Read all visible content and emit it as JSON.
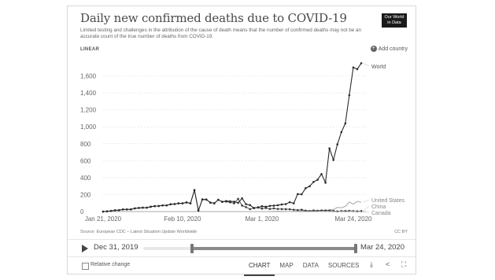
{
  "header": {
    "title": "Daily new confirmed deaths due to COVID-19",
    "subtitle": "Limited testing and challenges in the attribution of the cause of death means that the number of confirmed deaths may not be an accurate count of the true number of deaths from COVID-19.",
    "logo_line1": "Our World",
    "logo_line2": "in Data",
    "scale": "LINEAR",
    "add_country": "Add country"
  },
  "chart_data": {
    "type": "line",
    "ylim": [
      0,
      1800
    ],
    "yticks": [
      0,
      200,
      400,
      600,
      800,
      1000,
      1200,
      1400,
      1600
    ],
    "ytick_labels": [
      "0",
      "200",
      "400",
      "600",
      "800",
      "1,000",
      "1,200",
      "1,400",
      "1,600"
    ],
    "xticks": [
      {
        "day": 0,
        "label": "Jan 21, 2020"
      },
      {
        "day": 20,
        "label": "Feb 10, 2020"
      },
      {
        "day": 40,
        "label": "Mar 1, 2020"
      },
      {
        "day": 63,
        "label": "Mar 24, 2020"
      }
    ],
    "grid": true,
    "series": [
      {
        "name": "World",
        "color": "#2b2b2b",
        "values": [
          0,
          3,
          8,
          15,
          17,
          25,
          25,
          26,
          38,
          43,
          46,
          46,
          57,
          64,
          66,
          73,
          73,
          86,
          89,
          97,
          97,
          108,
          97,
          254,
          13,
          143,
          142,
          106,
          98,
          139,
          115,
          125,
          121,
          117,
          103,
          156,
          87,
          76,
          40,
          50,
          63,
          57,
          67,
          70,
          75,
          84,
          88,
          111,
          97,
          206,
          204,
          275,
          298,
          350,
          375,
          443,
          341,
          745,
          609,
          793,
          937,
          1040,
          1373,
          1700,
          1680,
          1750
        ]
      },
      {
        "name": "United States",
        "color": "#9a9a9a",
        "values": [
          0,
          0,
          0,
          0,
          0,
          0,
          0,
          0,
          0,
          0,
          0,
          0,
          0,
          0,
          0,
          0,
          0,
          0,
          0,
          0,
          0,
          0,
          0,
          0,
          0,
          0,
          0,
          0,
          0,
          0,
          0,
          0,
          0,
          0,
          0,
          0,
          0,
          0,
          0,
          1,
          0,
          1,
          2,
          3,
          4,
          3,
          2,
          1,
          4,
          3,
          8,
          3,
          12,
          7,
          8,
          14,
          10,
          23,
          24,
          49,
          45,
          62,
          113,
          88,
          120,
          110
        ]
      },
      {
        "name": "China",
        "color": "#3a3a3a",
        "values": [
          0,
          3,
          8,
          15,
          17,
          25,
          25,
          26,
          38,
          43,
          46,
          46,
          57,
          64,
          65,
          73,
          73,
          86,
          89,
          97,
          97,
          108,
          97,
          254,
          13,
          143,
          142,
          106,
          98,
          139,
          115,
          118,
          109,
          97,
          150,
          71,
          52,
          29,
          44,
          47,
          35,
          42,
          31,
          38,
          31,
          30,
          28,
          27,
          22,
          17,
          22,
          11,
          7,
          13,
          10,
          14,
          13,
          11,
          8,
          3,
          7,
          6,
          9,
          7,
          4,
          6
        ]
      },
      {
        "name": "Canada",
        "color": "#aaaaaa",
        "values": [
          0,
          0,
          0,
          0,
          0,
          0,
          0,
          0,
          0,
          0,
          0,
          0,
          0,
          0,
          0,
          0,
          0,
          0,
          0,
          0,
          0,
          0,
          0,
          0,
          0,
          0,
          0,
          0,
          0,
          0,
          0,
          0,
          0,
          0,
          0,
          0,
          0,
          0,
          0,
          0,
          0,
          0,
          0,
          0,
          0,
          0,
          0,
          0,
          1,
          0,
          0,
          0,
          1,
          0,
          1,
          3,
          1,
          2,
          2,
          1,
          4,
          1,
          3,
          6,
          2,
          3
        ]
      }
    ]
  },
  "source": "Source: European CDC – Latest Situation Update Worldwide",
  "license": "CC BY",
  "timeline": {
    "start": "Dec 31, 2019",
    "end": "Mar 24, 2020"
  },
  "footer": {
    "relative_change": "Relative change",
    "tabs": [
      "CHART",
      "MAP",
      "DATA",
      "SOURCES"
    ]
  }
}
